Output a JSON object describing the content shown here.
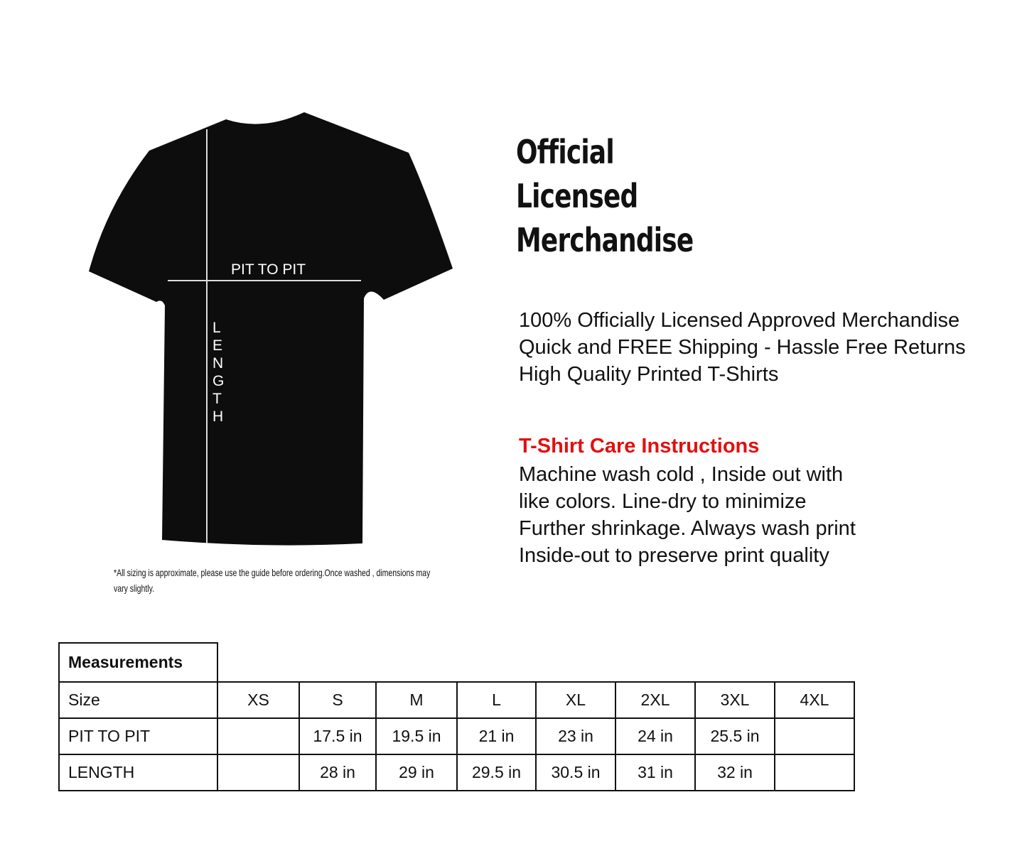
{
  "title_lines": [
    "Official",
    "Licensed",
    "Merchandise"
  ],
  "features": [
    "100% Officially Licensed Approved Merchandise",
    "Quick and FREE Shipping - Hassle Free Returns",
    "High Quality Printed T-Shirts"
  ],
  "care": {
    "heading": "T-Shirt Care Instructions",
    "heading_color": "#e0110f",
    "lines": [
      "Machine wash cold , Inside out with",
      "like colors. Line-dry to minimize",
      "Further shrinkage. Always wash print",
      "Inside-out to preserve print quality"
    ]
  },
  "diagram": {
    "pit_label": "PIT TO PIT",
    "length_letters": [
      "L",
      "E",
      "N",
      "G",
      "T",
      "H"
    ],
    "shirt_color": "#0d0d0d"
  },
  "disclaimer": "*All sizing is approximate, please use the guide before ordering.Once washed , dimensions may vary slightly.",
  "table": {
    "heading": "Measurements",
    "size_label": "Size",
    "sizes": [
      "XS",
      "S",
      "M",
      "L",
      "XL",
      "2XL",
      "3XL",
      "4XL"
    ],
    "rows": [
      {
        "label": "PIT TO PIT",
        "values": [
          "",
          "17.5 in",
          "19.5 in",
          "21 in",
          "23 in",
          "24 in",
          "25.5 in",
          ""
        ]
      },
      {
        "label": "LENGTH",
        "values": [
          "",
          "28 in",
          "29 in",
          "29.5 in",
          "30.5 in",
          "31 in",
          "32 in",
          ""
        ]
      }
    ]
  }
}
